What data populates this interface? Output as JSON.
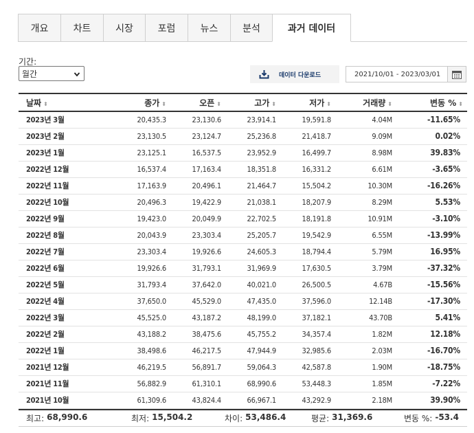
{
  "tabs": [
    {
      "label": "개요",
      "active": false
    },
    {
      "label": "차트",
      "active": false
    },
    {
      "label": "시장",
      "active": false
    },
    {
      "label": "포럼",
      "active": false
    },
    {
      "label": "뉴스",
      "active": false
    },
    {
      "label": "분석",
      "active": false
    },
    {
      "label": "과거 데이터",
      "active": true
    }
  ],
  "period": {
    "label": "기간:",
    "selected": "월간"
  },
  "download": {
    "label": "데이터 다운로드",
    "icon": "download-icon"
  },
  "date_range": {
    "value": "2021/10/01 - 2023/03/01",
    "icon": "calendar-icon"
  },
  "colors": {
    "up": "#d0021b",
    "down": "#1a87c4",
    "header_border": "#333333"
  },
  "table": {
    "columns": [
      "날짜",
      "종가",
      "오픈",
      "고가",
      "저가",
      "거래량",
      "변동 %"
    ],
    "rows": [
      {
        "date": "2023년 3월",
        "close": "20,435.3",
        "open": "23,130.6",
        "high": "23,914.1",
        "low": "19,591.8",
        "volume": "4.04M",
        "change": "-11.65%",
        "dir": "down"
      },
      {
        "date": "2023년 2월",
        "close": "23,130.5",
        "open": "23,124.7",
        "high": "25,236.8",
        "low": "21,418.7",
        "volume": "9.09M",
        "change": "0.02%",
        "dir": "up"
      },
      {
        "date": "2023년 1월",
        "close": "23,125.1",
        "open": "16,537.5",
        "high": "23,952.9",
        "low": "16,499.7",
        "volume": "8.98M",
        "change": "39.83%",
        "dir": "up"
      },
      {
        "date": "2022년 12월",
        "close": "16,537.4",
        "open": "17,163.4",
        "high": "18,351.8",
        "low": "16,331.2",
        "volume": "6.61M",
        "change": "-3.65%",
        "dir": "down"
      },
      {
        "date": "2022년 11월",
        "close": "17,163.9",
        "open": "20,496.1",
        "high": "21,464.7",
        "low": "15,504.2",
        "volume": "10.30M",
        "change": "-16.26%",
        "dir": "down"
      },
      {
        "date": "2022년 10월",
        "close": "20,496.3",
        "open": "19,422.9",
        "high": "21,038.1",
        "low": "18,207.9",
        "volume": "8.29M",
        "change": "5.53%",
        "dir": "up"
      },
      {
        "date": "2022년 9월",
        "close": "19,423.0",
        "open": "20,049.9",
        "high": "22,702.5",
        "low": "18,191.8",
        "volume": "10.91M",
        "change": "-3.10%",
        "dir": "down"
      },
      {
        "date": "2022년 8월",
        "close": "20,043.9",
        "open": "23,303.4",
        "high": "25,205.7",
        "low": "19,542.9",
        "volume": "6.55M",
        "change": "-13.99%",
        "dir": "down"
      },
      {
        "date": "2022년 7월",
        "close": "23,303.4",
        "open": "19,926.6",
        "high": "24,605.3",
        "low": "18,794.4",
        "volume": "5.79M",
        "change": "16.95%",
        "dir": "up"
      },
      {
        "date": "2022년 6월",
        "close": "19,926.6",
        "open": "31,793.1",
        "high": "31,969.9",
        "low": "17,630.5",
        "volume": "3.79M",
        "change": "-37.32%",
        "dir": "down"
      },
      {
        "date": "2022년 5월",
        "close": "31,793.4",
        "open": "37,642.0",
        "high": "40,021.0",
        "low": "26,500.5",
        "volume": "4.67B",
        "change": "-15.56%",
        "dir": "down"
      },
      {
        "date": "2022년 4월",
        "close": "37,650.0",
        "open": "45,529.0",
        "high": "47,435.0",
        "low": "37,596.0",
        "volume": "12.14B",
        "change": "-17.30%",
        "dir": "down"
      },
      {
        "date": "2022년 3월",
        "close": "45,525.0",
        "open": "43,187.2",
        "high": "48,199.0",
        "low": "37,182.1",
        "volume": "43.70B",
        "change": "5.41%",
        "dir": "up"
      },
      {
        "date": "2022년 2월",
        "close": "43,188.2",
        "open": "38,475.6",
        "high": "45,755.2",
        "low": "34,357.4",
        "volume": "1.82M",
        "change": "12.18%",
        "dir": "up"
      },
      {
        "date": "2022년 1월",
        "close": "38,498.6",
        "open": "46,217.5",
        "high": "47,944.9",
        "low": "32,985.6",
        "volume": "2.03M",
        "change": "-16.70%",
        "dir": "down"
      },
      {
        "date": "2021년 12월",
        "close": "46,219.5",
        "open": "56,891.7",
        "high": "59,064.3",
        "low": "42,587.8",
        "volume": "1.90M",
        "change": "-18.75%",
        "dir": "down"
      },
      {
        "date": "2021년 11월",
        "close": "56,882.9",
        "open": "61,310.1",
        "high": "68,990.6",
        "low": "53,448.3",
        "volume": "1.85M",
        "change": "-7.22%",
        "dir": "down"
      },
      {
        "date": "2021년 10월",
        "close": "61,309.6",
        "open": "43,824.4",
        "high": "66,967.1",
        "low": "43,292.9",
        "volume": "2.18M",
        "change": "39.90%",
        "dir": "up"
      }
    ]
  },
  "summary": {
    "highest_label": "최고:",
    "highest": "68,990.6",
    "lowest_label": "최저:",
    "lowest": "15,504.2",
    "diff_label": "차이:",
    "diff": "53,486.4",
    "avg_label": "평균:",
    "avg": "31,369.6",
    "change_label": "변동 %:",
    "change": "-53.4"
  }
}
